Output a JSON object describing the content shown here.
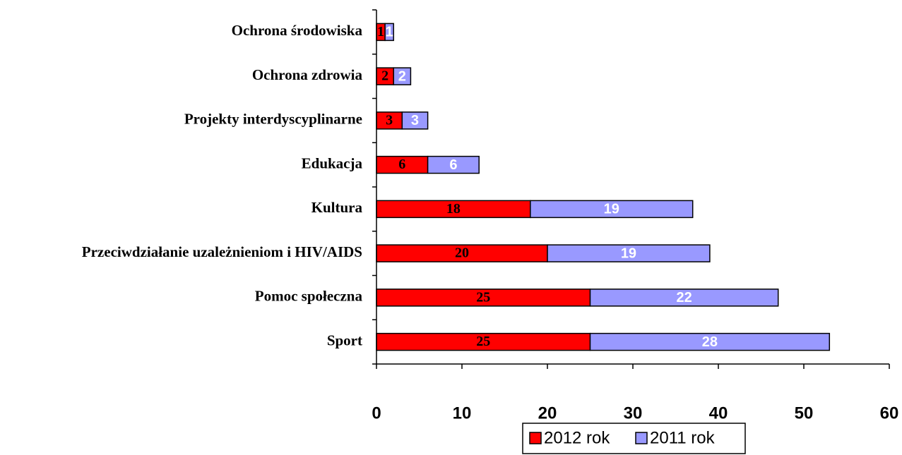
{
  "chart_data": {
    "type": "stacked_barh",
    "categories": [
      "Ochrona środowiska",
      "Ochrona zdrowia",
      "Projekty interdyscyplinarne",
      "Edukacja",
      "Kultura",
      "Przeciwdziałanie uzależnieniom i HIV/AIDS",
      "Pomoc społeczna",
      "Sport"
    ],
    "series": [
      {
        "name": "2012 rok",
        "color": "#ff0000",
        "values": [
          1,
          2,
          3,
          6,
          18,
          20,
          25,
          25
        ]
      },
      {
        "name": "2011 rok",
        "color": "#9999ff",
        "values": [
          1,
          2,
          3,
          6,
          19,
          19,
          22,
          28
        ]
      }
    ],
    "xlim": [
      0,
      60
    ],
    "xticks": [
      0,
      10,
      20,
      30,
      40,
      50,
      60
    ],
    "legend": "bottom"
  }
}
